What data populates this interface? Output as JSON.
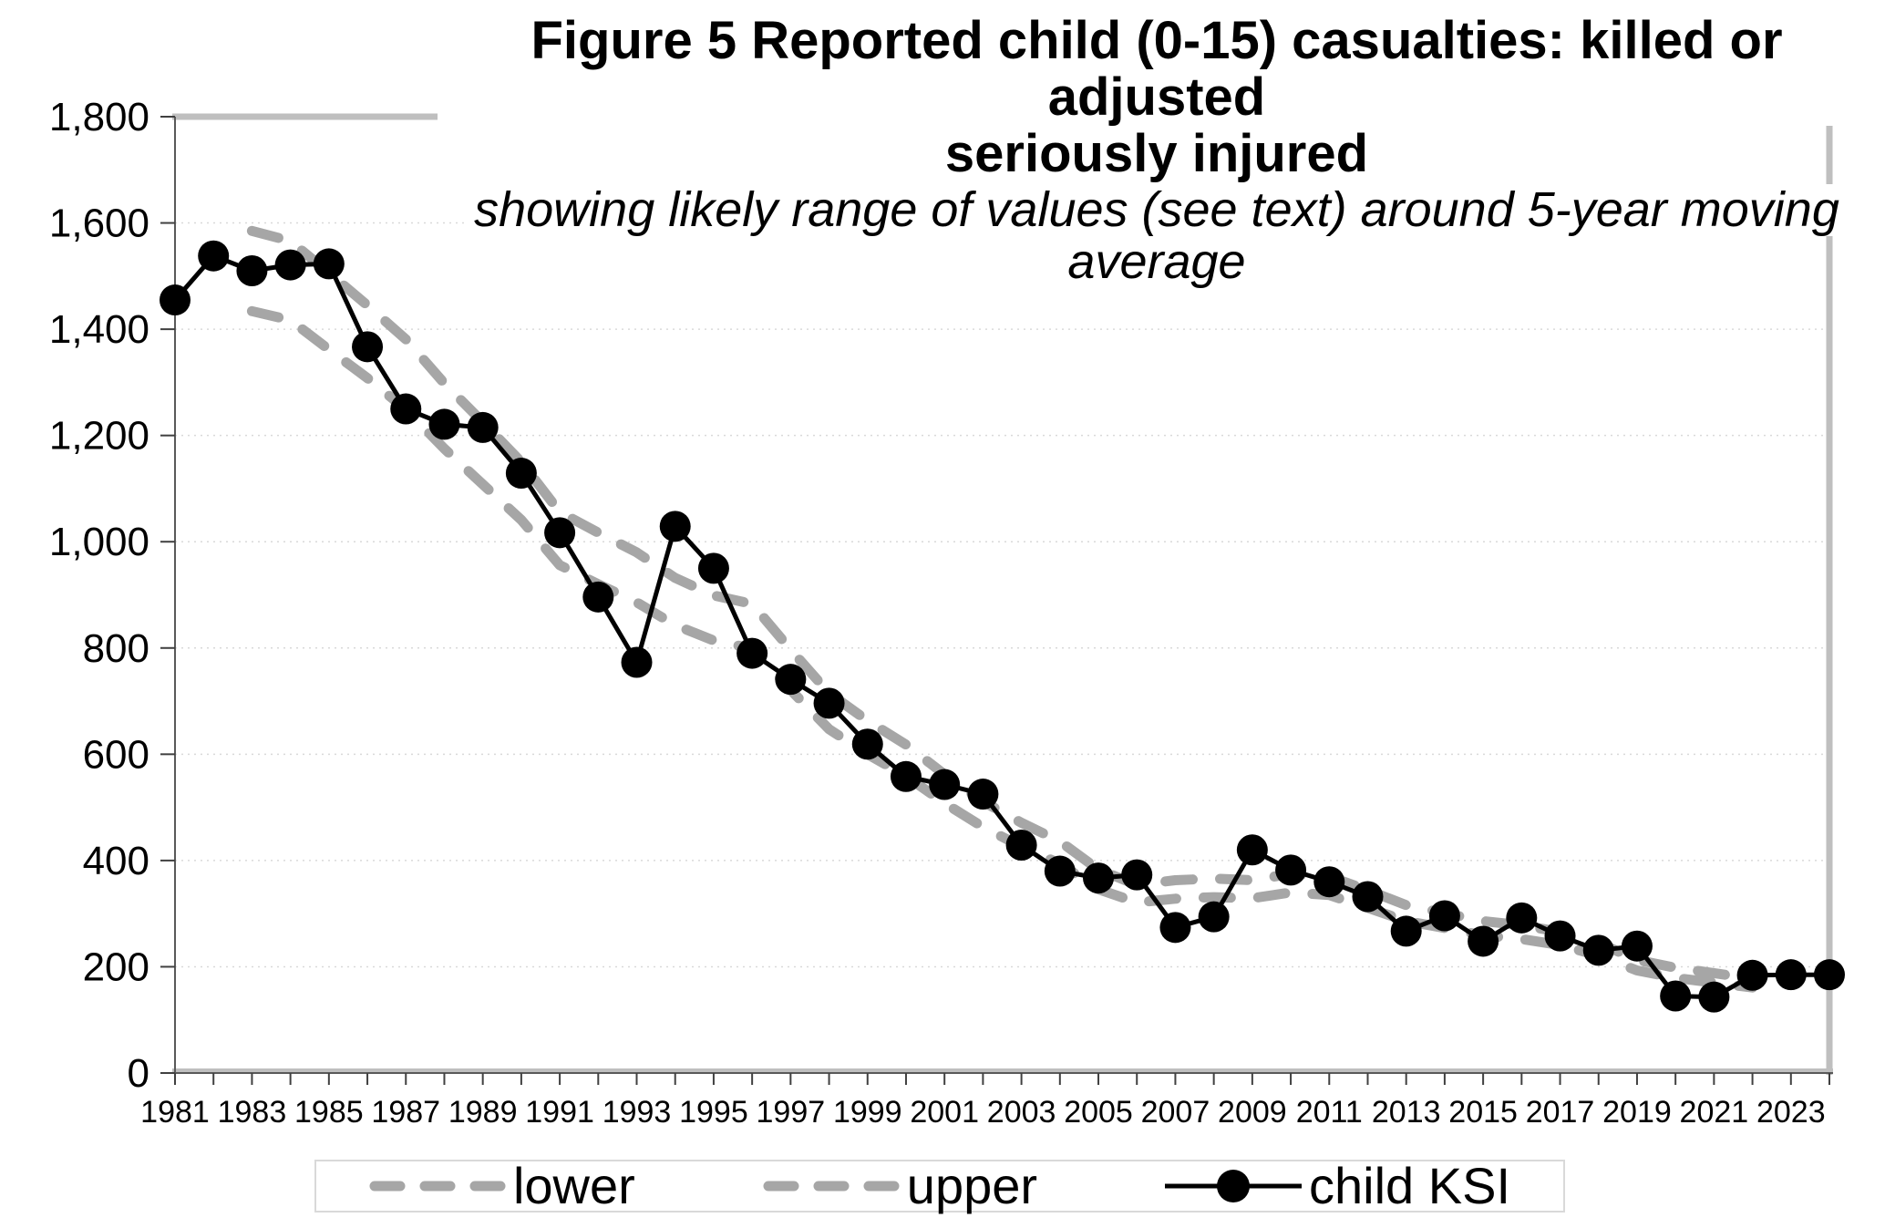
{
  "header": {
    "title_line1": "Figure 5 Reported child (0-15) casualties: killed or adjusted",
    "title_line2": "seriously injured",
    "subtitle_line1": "showing likely range of values (see text) around 5-year moving",
    "subtitle_line2": "average"
  },
  "chart_data": {
    "type": "line",
    "title": "Figure 5 Reported child (0-15) casualties: killed or adjusted seriously injured",
    "subtitle": "showing likely range of values (see text) around 5-year moving average",
    "x": [
      1981,
      1982,
      1983,
      1984,
      1985,
      1986,
      1987,
      1988,
      1989,
      1990,
      1991,
      1992,
      1993,
      1994,
      1995,
      1996,
      1997,
      1998,
      1999,
      2000,
      2001,
      2002,
      2003,
      2004,
      2005,
      2006,
      2007,
      2008,
      2009,
      2010,
      2011,
      2012,
      2013,
      2014,
      2015,
      2016,
      2017,
      2018,
      2019,
      2020,
      2021,
      2022,
      2023,
      2024
    ],
    "xtick_labels": [
      "1981",
      "1983",
      "1985",
      "1987",
      "1989",
      "1991",
      "1993",
      "1995",
      "1997",
      "1999",
      "2001",
      "2003",
      "2005",
      "2007",
      "2009",
      "2011",
      "2013",
      "2015",
      "2017",
      "2019",
      "2021",
      "2023"
    ],
    "ytick_labels": [
      "0",
      "200",
      "400",
      "600",
      "800",
      "1,000",
      "1,200",
      "1,400",
      "1,600",
      "1,800"
    ],
    "ylim": [
      0,
      1800
    ],
    "ytick_step": 200,
    "grid": "horizontal-dotted",
    "legend_position": "bottom",
    "colors": {
      "band": "#a6a6a6",
      "main_series": "#000000",
      "gridline": "#d9d9d9",
      "plot_border": "#bfbfbf",
      "axis": "#404040",
      "legend_border": "#d9d9d9"
    },
    "series": [
      {
        "name": "lower",
        "style": "dashed",
        "color": "#a6a6a6",
        "values": [
          null,
          null,
          1434,
          1417,
          1362,
          1308,
          1249,
          1175,
          1108,
          1041,
          956,
          920,
          886,
          843,
          814,
          799,
          721,
          647,
          600,
          559,
          508,
          463,
          426,
          394,
          346,
          321,
          328,
          331,
          329,
          340,
          335,
          311,
          286,
          273,
          259,
          252,
          241,
          221,
          193,
          179,
          170,
          161,
          null,
          null
        ]
      },
      {
        "name": "upper",
        "style": "dashed",
        "color": "#a6a6a6",
        "values": [
          null,
          null,
          1585,
          1566,
          1506,
          1445,
          1381,
          1298,
          1225,
          1150,
          1056,
          1017,
          980,
          932,
          899,
          883,
          797,
          715,
          663,
          618,
          562,
          511,
          471,
          436,
          383,
          354,
          363,
          366,
          363,
          375,
          370,
          344,
          316,
          301,
          286,
          278,
          266,
          245,
          213,
          198,
          188,
          177,
          null,
          null
        ]
      },
      {
        "name": "child KSI",
        "style": "line-markers",
        "color": "#000000",
        "values": [
          1455,
          1538,
          1510,
          1521,
          1523,
          1367,
          1250,
          1221,
          1215,
          1129,
          1017,
          896,
          773,
          1029,
          950,
          790,
          741,
          696,
          619,
          558,
          543,
          525,
          429,
          380,
          367,
          373,
          274,
          294,
          420,
          382,
          360,
          332,
          267,
          296,
          248,
          292,
          258,
          231,
          239,
          145,
          143,
          184,
          185,
          185
        ]
      }
    ]
  }
}
